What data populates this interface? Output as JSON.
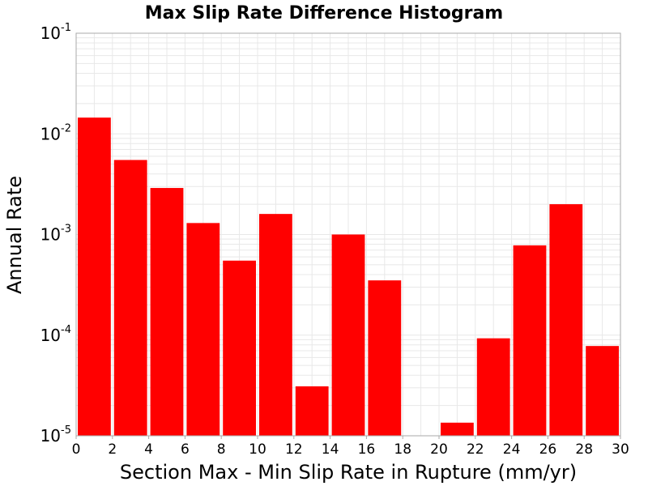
{
  "chart_data": {
    "type": "bar",
    "title": "Max Slip Rate Difference Histogram",
    "xlabel": "Section Max - Min Slip Rate in Rupture (mm/yr)",
    "ylabel": "Annual Rate",
    "xlim": [
      0,
      30
    ],
    "ylim": [
      1e-05,
      0.1
    ],
    "yscale": "log",
    "bin_width": 2,
    "x_ticks": [
      "0",
      "2",
      "4",
      "6",
      "8",
      "10",
      "12",
      "14",
      "16",
      "18",
      "20",
      "22",
      "24",
      "26",
      "28",
      "30"
    ],
    "y_ticks": [
      {
        "base": "10",
        "exp": "-1",
        "value": 0.1
      },
      {
        "base": "10",
        "exp": "-2",
        "value": 0.01
      },
      {
        "base": "10",
        "exp": "-3",
        "value": 0.001
      },
      {
        "base": "10",
        "exp": "-4",
        "value": 0.0001
      },
      {
        "base": "10",
        "exp": "-5",
        "value": 1e-05
      }
    ],
    "bars": [
      {
        "x0": 0,
        "x1": 2,
        "value": 0.0145
      },
      {
        "x0": 2,
        "x1": 4,
        "value": 0.0055
      },
      {
        "x0": 4,
        "x1": 6,
        "value": 0.0029
      },
      {
        "x0": 6,
        "x1": 8,
        "value": 0.0013
      },
      {
        "x0": 8,
        "x1": 10,
        "value": 0.00055
      },
      {
        "x0": 10,
        "x1": 12,
        "value": 0.0016
      },
      {
        "x0": 12,
        "x1": 14,
        "value": 3.1e-05
      },
      {
        "x0": 14,
        "x1": 16,
        "value": 0.001
      },
      {
        "x0": 16,
        "x1": 18,
        "value": 0.00035
      },
      {
        "x0": 18,
        "x1": 20,
        "value": 0
      },
      {
        "x0": 20,
        "x1": 22,
        "value": 1.35e-05
      },
      {
        "x0": 22,
        "x1": 24,
        "value": 9.3e-05
      },
      {
        "x0": 24,
        "x1": 26,
        "value": 0.00078
      },
      {
        "x0": 26,
        "x1": 28,
        "value": 0.002
      },
      {
        "x0": 28,
        "x1": 30,
        "value": 7.8e-05
      }
    ],
    "grid": true,
    "bar_color": "#ff0000",
    "grid_color": "#e8e8e8",
    "frame_color": "#aaaaaa"
  }
}
